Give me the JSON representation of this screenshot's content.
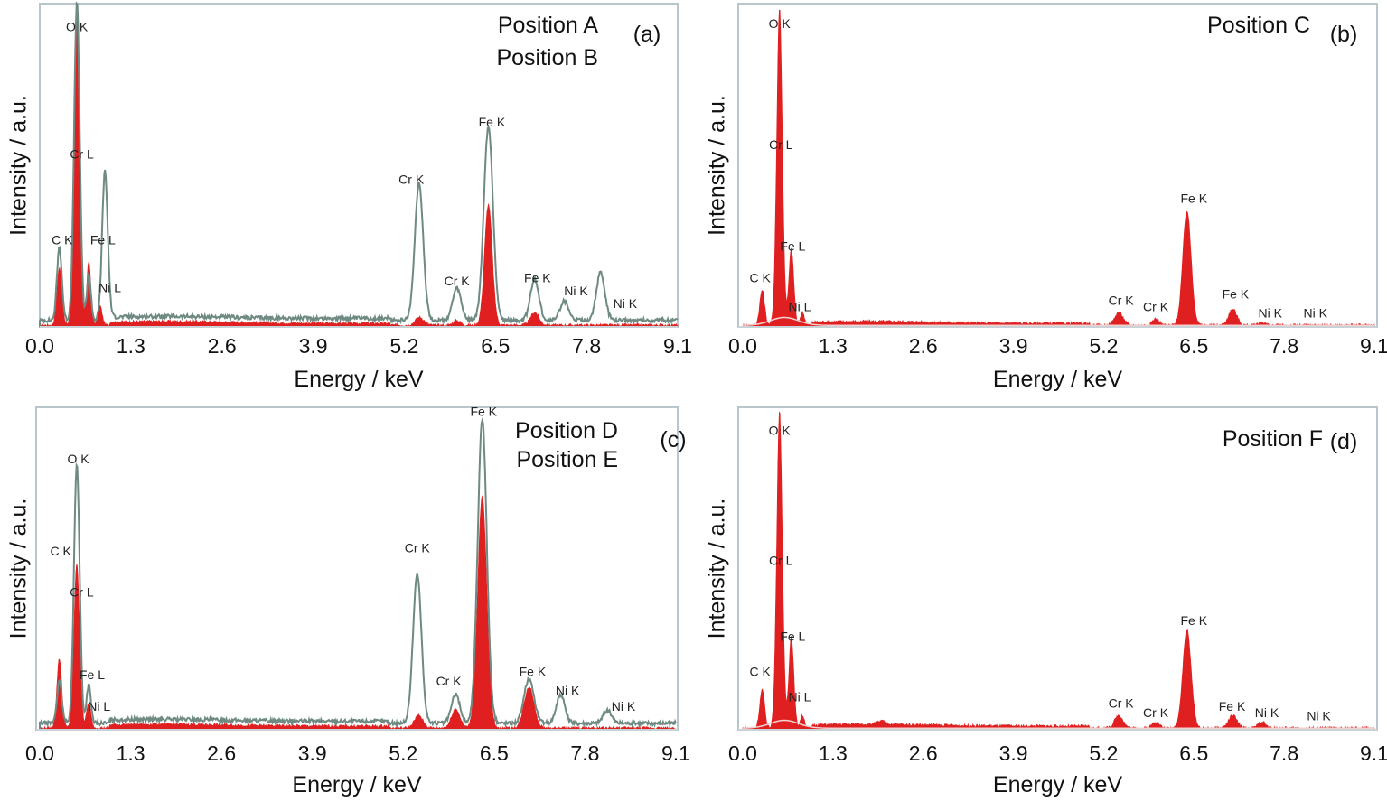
{
  "figure": {
    "colors": {
      "measured": "#e02020",
      "reference": "#6e8a82",
      "frame": "#b9c6cc",
      "bg": "#ffffff"
    }
  },
  "chart_data": [
    {
      "type": "area",
      "panel": "(a)",
      "legend": [
        "Position A",
        "Position B"
      ],
      "xlabel": "Energy / keV",
      "ylabel": "Intensity / a.u.",
      "xlim": [
        0,
        9.1
      ],
      "ylim": [
        0,
        100
      ],
      "xticks": [
        "0.0",
        "1.3",
        "2.6",
        "3.9",
        "5.2",
        "6.5",
        "7.8",
        "9.1"
      ],
      "series": [
        {
          "name": "Position A",
          "peaks": [
            [
              0.28,
              18,
              0.035
            ],
            [
              0.53,
              100,
              0.04
            ],
            [
              0.7,
              20,
              0.03
            ],
            [
              0.86,
              6,
              0.03
            ],
            [
              5.42,
              2.5,
              0.06
            ],
            [
              5.95,
              1.5,
              0.05
            ],
            [
              6.4,
              38,
              0.055
            ],
            [
              7.06,
              4,
              0.06
            ]
          ]
        },
        {
          "name": "Position B",
          "peaks": [
            [
              0.28,
              23,
              0.035
            ],
            [
              0.53,
              100,
              0.04
            ],
            [
              0.7,
              14,
              0.03
            ],
            [
              0.93,
              47,
              0.04
            ],
            [
              5.41,
              43,
              0.06
            ],
            [
              5.95,
              10,
              0.06
            ],
            [
              6.4,
              61,
              0.065
            ],
            [
              7.06,
              13,
              0.06
            ],
            [
              7.48,
              6,
              0.06
            ],
            [
              8.0,
              15,
              0.06
            ]
          ]
        }
      ],
      "labels": [
        {
          "text": "O K",
          "x": 0.53,
          "y": 93
        },
        {
          "text": "Cr L",
          "x": 0.6,
          "y": 53
        },
        {
          "text": "C K",
          "x": 0.32,
          "y": 26
        },
        {
          "text": "Fe L",
          "x": 0.9,
          "y": 26
        },
        {
          "text": "Ni L",
          "x": 1.0,
          "y": 11
        },
        {
          "text": "Cr K",
          "x": 5.3,
          "y": 45
        },
        {
          "text": "Fe K",
          "x": 6.45,
          "y": 63
        },
        {
          "text": "Cr K",
          "x": 5.95,
          "y": 13
        },
        {
          "text": "Fe K",
          "x": 7.1,
          "y": 14
        },
        {
          "text": "Ni K",
          "x": 7.65,
          "y": 10
        },
        {
          "text": "Ni K",
          "x": 8.35,
          "y": 6
        }
      ]
    },
    {
      "type": "area",
      "panel": "(b)",
      "legend": [
        "Position C"
      ],
      "xlabel": "Energy / keV",
      "ylabel": "Intensity / a.u.",
      "xlim": [
        0,
        9.1
      ],
      "ylim": [
        0,
        100
      ],
      "xticks": [
        "0.0",
        "1.3",
        "2.6",
        "3.9",
        "5.2",
        "6.5",
        "7.8",
        "9.1"
      ],
      "series": [
        {
          "name": "Position C",
          "peaks": [
            [
              0.28,
              11,
              0.035
            ],
            [
              0.53,
              100,
              0.04
            ],
            [
              0.7,
              24,
              0.035
            ],
            [
              0.86,
              4,
              0.03
            ],
            [
              5.42,
              4,
              0.06
            ],
            [
              5.95,
              2,
              0.05
            ],
            [
              6.4,
              36,
              0.06
            ],
            [
              7.06,
              5,
              0.06
            ],
            [
              7.48,
              1,
              0.05
            ]
          ]
        }
      ],
      "labels": [
        {
          "text": "O K",
          "x": 0.53,
          "y": 94
        },
        {
          "text": "Cr L",
          "x": 0.55,
          "y": 56
        },
        {
          "text": "Fe L",
          "x": 0.72,
          "y": 24
        },
        {
          "text": "C K",
          "x": 0.25,
          "y": 14
        },
        {
          "text": "Ni L",
          "x": 0.82,
          "y": 5
        },
        {
          "text": "Cr K",
          "x": 5.45,
          "y": 7
        },
        {
          "text": "Cr K",
          "x": 5.95,
          "y": 5
        },
        {
          "text": "Fe K",
          "x": 6.5,
          "y": 39
        },
        {
          "text": "Fe K",
          "x": 7.1,
          "y": 9
        },
        {
          "text": "Ni K",
          "x": 7.6,
          "y": 3
        },
        {
          "text": "Ni K",
          "x": 8.25,
          "y": 3
        }
      ]
    },
    {
      "type": "area",
      "panel": "(c)",
      "legend": [
        "Position D",
        "Position E"
      ],
      "xlabel": "Energy / keV",
      "ylabel": "Intensity / a.u.",
      "xlim": [
        0,
        9.1
      ],
      "ylim": [
        0,
        100
      ],
      "xticks": [
        "0.0",
        "1.3",
        "2.6",
        "3.9",
        "5.2",
        "6.5",
        "7.8",
        "9.1"
      ],
      "series": [
        {
          "name": "Position D",
          "peaks": [
            [
              0.28,
              22,
              0.035
            ],
            [
              0.53,
              52,
              0.04
            ],
            [
              0.7,
              8,
              0.03
            ],
            [
              5.42,
              4,
              0.06
            ],
            [
              5.95,
              6,
              0.06
            ],
            [
              6.33,
              73,
              0.065
            ],
            [
              7.0,
              13,
              0.07
            ]
          ]
        },
        {
          "name": "Position E",
          "peaks": [
            [
              0.28,
              13,
              0.035
            ],
            [
              0.53,
              82,
              0.04
            ],
            [
              0.7,
              12,
              0.03
            ],
            [
              5.4,
              47,
              0.06
            ],
            [
              5.95,
              9,
              0.06
            ],
            [
              6.33,
              96,
              0.065
            ],
            [
              7.0,
              14,
              0.07
            ],
            [
              7.45,
              9,
              0.06
            ],
            [
              8.12,
              4,
              0.06
            ]
          ]
        }
      ],
      "labels": [
        {
          "text": "Fe K",
          "x": 6.35,
          "y": 99
        },
        {
          "text": "O K",
          "x": 0.55,
          "y": 84
        },
        {
          "text": "C K",
          "x": 0.3,
          "y": 55
        },
        {
          "text": "Cr L",
          "x": 0.6,
          "y": 42
        },
        {
          "text": "Fe L",
          "x": 0.75,
          "y": 16
        },
        {
          "text": "Ni L",
          "x": 0.85,
          "y": 6
        },
        {
          "text": "Cr K",
          "x": 5.4,
          "y": 56
        },
        {
          "text": "Cr K",
          "x": 5.85,
          "y": 14
        },
        {
          "text": "Fe K",
          "x": 7.05,
          "y": 17
        },
        {
          "text": "Ni K",
          "x": 7.55,
          "y": 11
        },
        {
          "text": "Ni K",
          "x": 8.35,
          "y": 6
        }
      ]
    },
    {
      "type": "area",
      "panel": "(d)",
      "legend": [
        "Position F"
      ],
      "xlabel": "Energy / keV",
      "ylabel": "Intensity / a.u.",
      "xlim": [
        0,
        9.1
      ],
      "ylim": [
        0,
        100
      ],
      "xticks": [
        "0.0",
        "1.3",
        "2.6",
        "3.9",
        "5.2",
        "6.5",
        "7.8",
        "9.1"
      ],
      "series": [
        {
          "name": "Position F",
          "peaks": [
            [
              0.28,
              12,
              0.035
            ],
            [
              0.53,
              100,
              0.04
            ],
            [
              0.7,
              29,
              0.035
            ],
            [
              0.86,
              4,
              0.03
            ],
            [
              2.0,
              1,
              0.06
            ],
            [
              5.42,
              4,
              0.06
            ],
            [
              5.95,
              2,
              0.05
            ],
            [
              6.4,
              31,
              0.06
            ],
            [
              7.06,
              4,
              0.06
            ],
            [
              7.48,
              2,
              0.05
            ]
          ]
        }
      ],
      "labels": [
        {
          "text": "O K",
          "x": 0.53,
          "y": 93
        },
        {
          "text": "Cr L",
          "x": 0.55,
          "y": 52
        },
        {
          "text": "Fe L",
          "x": 0.72,
          "y": 28
        },
        {
          "text": "C K",
          "x": 0.25,
          "y": 17
        },
        {
          "text": "Ni L",
          "x": 0.82,
          "y": 9
        },
        {
          "text": "Cr K",
          "x": 5.45,
          "y": 7
        },
        {
          "text": "Cr K",
          "x": 5.95,
          "y": 4
        },
        {
          "text": "Fe K",
          "x": 6.5,
          "y": 33
        },
        {
          "text": "Fe K",
          "x": 7.05,
          "y": 6
        },
        {
          "text": "Ni K",
          "x": 7.55,
          "y": 4
        },
        {
          "text": "Ni K",
          "x": 8.3,
          "y": 3
        }
      ]
    }
  ]
}
